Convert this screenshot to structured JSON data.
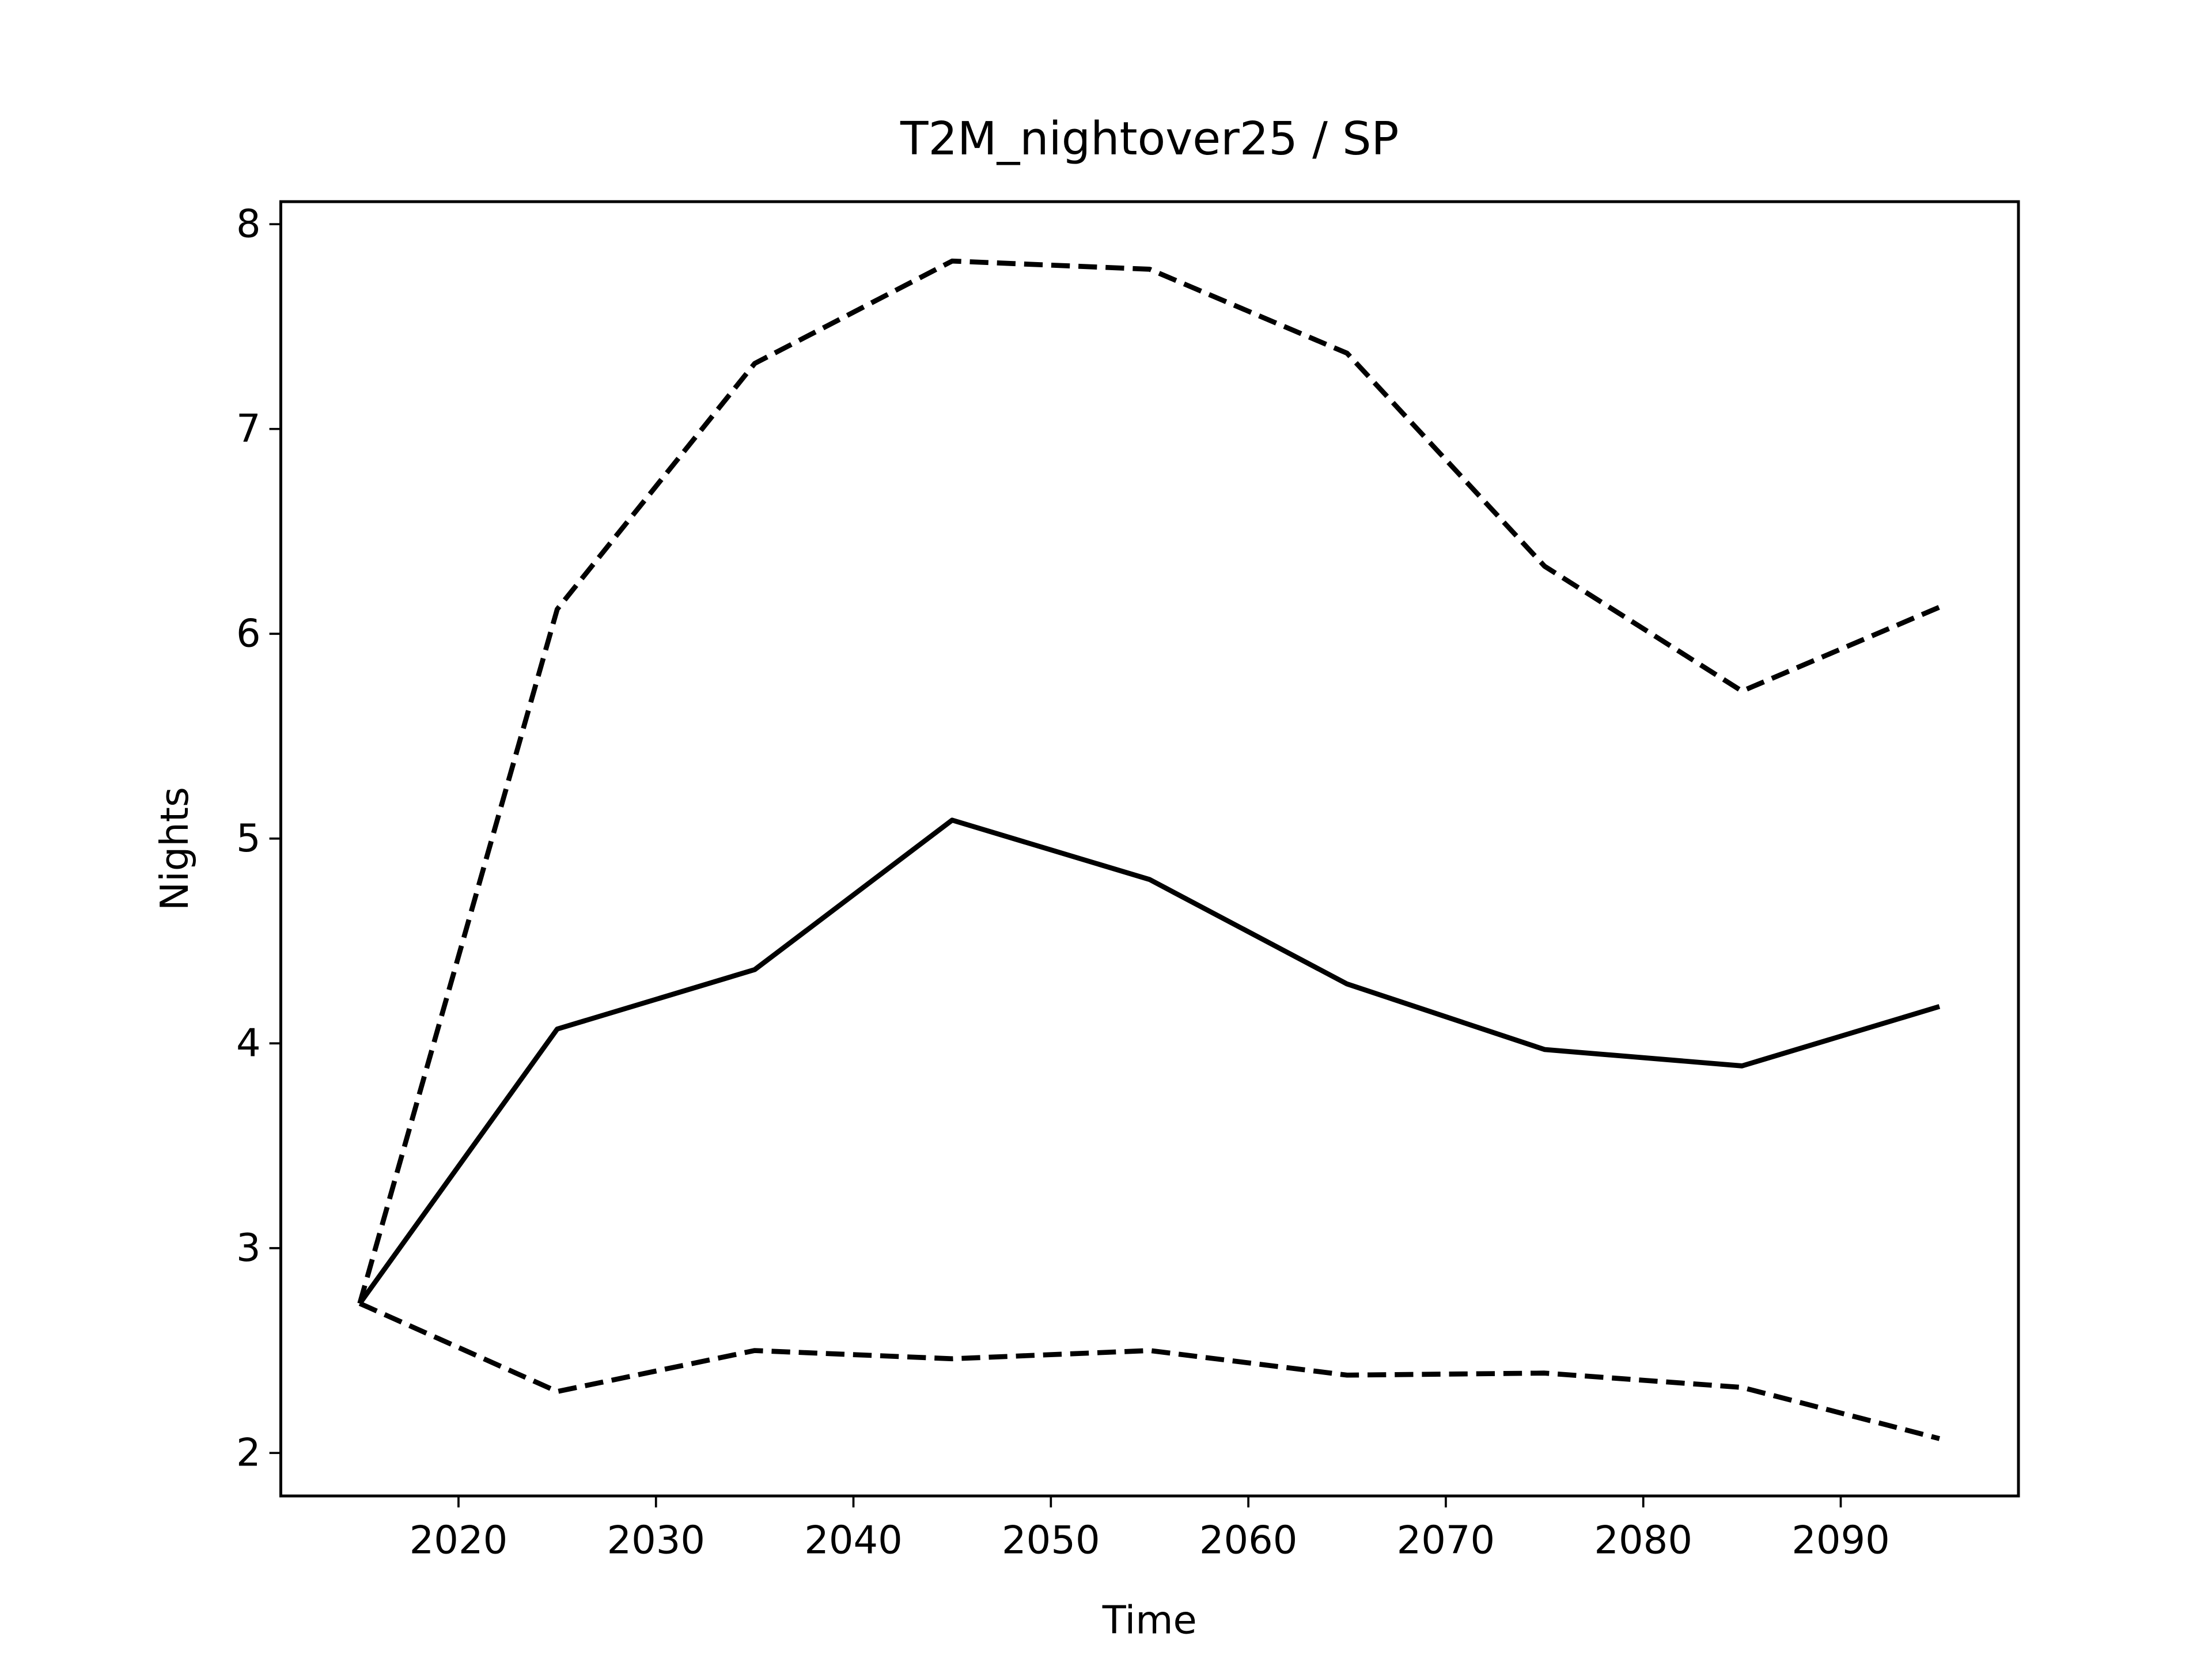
{
  "chart_data": {
    "type": "line",
    "title": "T2M_nightover25 / SP",
    "x_label": "Time",
    "y_label": "Nights",
    "x": [
      2015,
      2025,
      2035,
      2045,
      2055,
      2065,
      2075,
      2085,
      2095
    ],
    "series": [
      {
        "color": "#000000",
        "linestyle": "solid",
        "values": [
          2.73,
          4.07,
          4.36,
          5.09,
          4.8,
          4.29,
          3.97,
          3.89,
          4.18
        ]
      },
      {
        "color": "#000000",
        "linestyle": "dashed",
        "values": [
          2.73,
          6.12,
          7.32,
          7.82,
          7.78,
          7.37,
          6.33,
          5.72,
          6.13
        ]
      },
      {
        "color": "#000000",
        "linestyle": "dashed",
        "values": [
          2.73,
          2.3,
          2.5,
          2.46,
          2.5,
          2.38,
          2.39,
          2.32,
          2.07
        ]
      }
    ],
    "xlim": [
      2011,
      2099
    ],
    "xticks": [
      2020,
      2030,
      2040,
      2050,
      2060,
      2070,
      2080,
      2090
    ],
    "ylim": [
      1.79,
      8.11
    ],
    "yticks": [
      2,
      3,
      4,
      5,
      6,
      7,
      8
    ],
    "grid": false
  }
}
